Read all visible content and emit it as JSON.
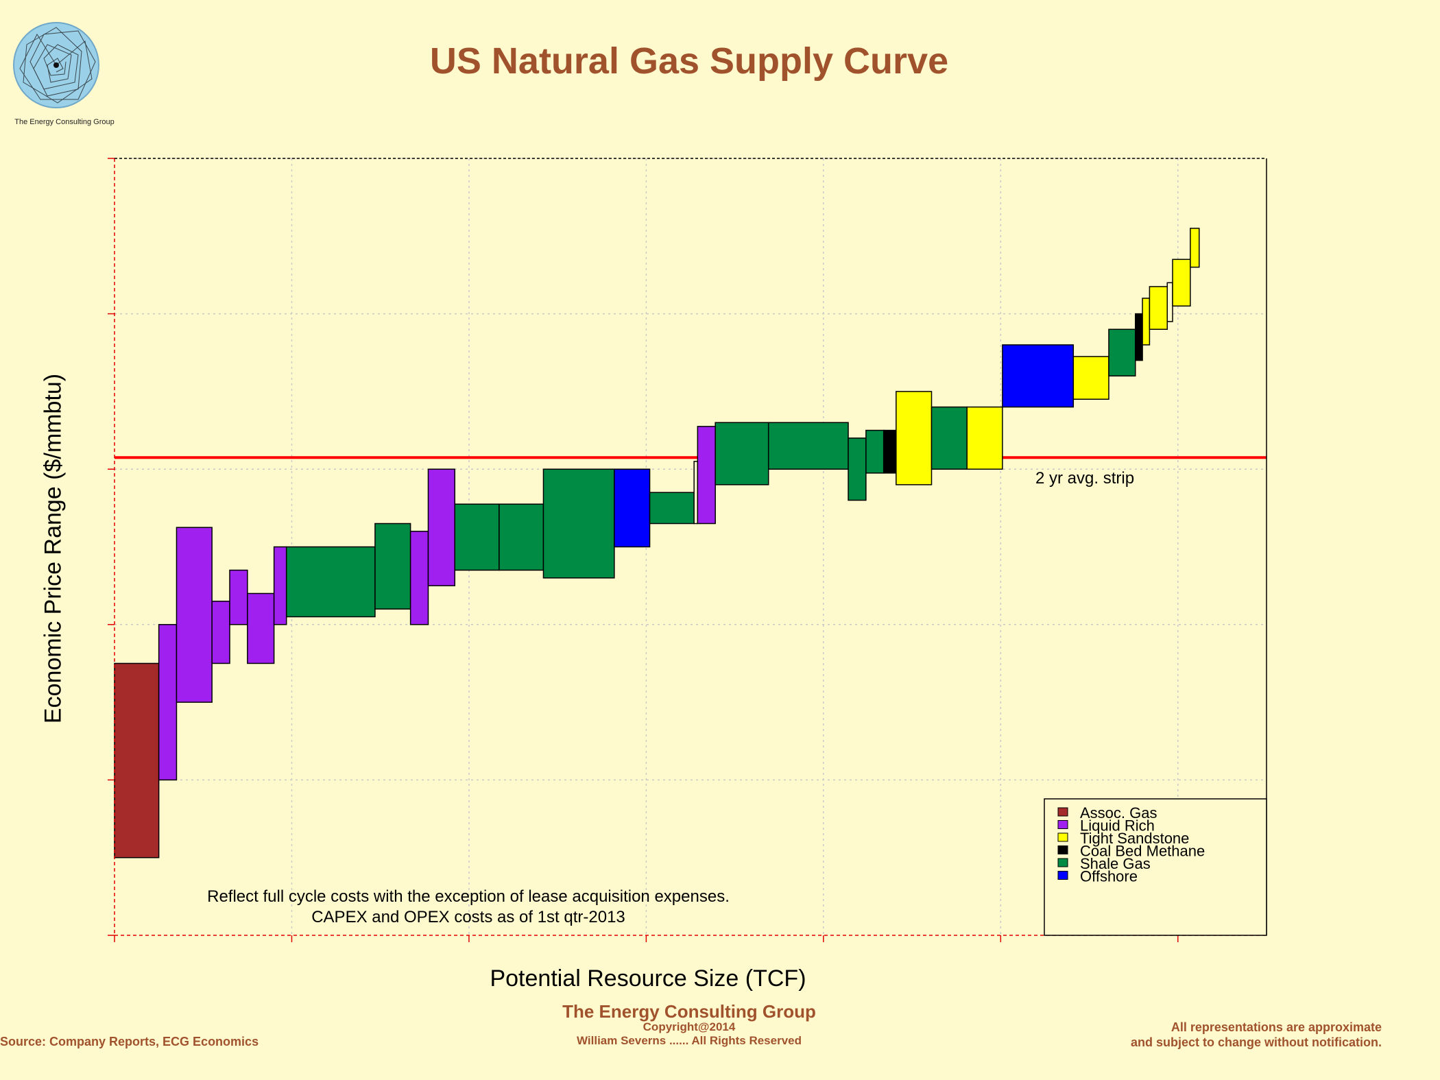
{
  "logo": {
    "caption": "The Energy Consulting Group"
  },
  "title": "US Natural Gas Supply Curve",
  "footer": {
    "company": "The Energy Consulting Group",
    "copyright": "Copyright@2014",
    "rights": "William Severns ...... All Rights Reserved",
    "source": "Source: Company Reports, ECG Economics",
    "disclaimer_1": "All representations are approximate",
    "disclaimer_2": "and subject to change without notification."
  },
  "chart_data": {
    "type": "bar",
    "subtype": "variable-width supply curve (boxes: width = resource size, vertical span = price range)",
    "xlabel": "Potential Resource Size (TCF)",
    "ylabel": "Economic Price Range ($/mmbtu)",
    "xlim": [
      0,
      65
    ],
    "ylim": [
      0,
      10
    ],
    "x_tick_count": 7,
    "y_tick_count": 6,
    "x_ticks_labeled": false,
    "y_ticks_labeled": false,
    "grid": true,
    "legend_position": "bottom-right",
    "colors": {
      "Assoc. Gas": "#A52A2A",
      "Liquid Rich": "#A020F0",
      "Tight Sandstone": "#FFFF00",
      "Coal Bed Methane": "#000000",
      "Shale Gas": "#008B45",
      "Offshore": "#0000FF",
      "Unassigned": "#FFFACD"
    },
    "legend": [
      "Assoc. Gas",
      "Liquid Rich",
      "Tight Sandstone",
      "Coal Bed Methane",
      "Shale Gas",
      "Offshore"
    ],
    "reference_line": {
      "y": 6.15,
      "label": "2 yr avg. strip",
      "color": "#FF0000"
    },
    "annotation": [
      "Reflect full cycle costs with the exception of lease acquisition expenses.",
      "CAPEX and OPEX costs as of 1st qtr-2013"
    ],
    "boxes": [
      {
        "category": "Assoc. Gas",
        "x0": 0.0,
        "x1": 2.5,
        "low": 1.0,
        "high": 3.5
      },
      {
        "category": "Liquid Rich",
        "x0": 2.5,
        "x1": 3.5,
        "low": 2.0,
        "high": 4.0
      },
      {
        "category": "Liquid Rich",
        "x0": 3.5,
        "x1": 5.5,
        "low": 3.0,
        "high": 5.25
      },
      {
        "category": "Liquid Rich",
        "x0": 5.5,
        "x1": 6.5,
        "low": 3.5,
        "high": 4.3
      },
      {
        "category": "Liquid Rich",
        "x0": 6.5,
        "x1": 7.5,
        "low": 4.0,
        "high": 4.7
      },
      {
        "category": "Liquid Rich",
        "x0": 7.5,
        "x1": 9.0,
        "low": 3.5,
        "high": 4.4
      },
      {
        "category": "Liquid Rich",
        "x0": 9.0,
        "x1": 9.7,
        "low": 4.0,
        "high": 5.0
      },
      {
        "category": "Shale Gas",
        "x0": 9.7,
        "x1": 14.7,
        "low": 4.1,
        "high": 5.0
      },
      {
        "category": "Shale Gas",
        "x0": 14.7,
        "x1": 16.7,
        "low": 4.2,
        "high": 5.3
      },
      {
        "category": "Liquid Rich",
        "x0": 16.7,
        "x1": 17.7,
        "low": 4.0,
        "high": 5.2
      },
      {
        "category": "Liquid Rich",
        "x0": 17.7,
        "x1": 19.2,
        "low": 4.5,
        "high": 6.0
      },
      {
        "category": "Shale Gas",
        "x0": 19.2,
        "x1": 21.7,
        "low": 4.7,
        "high": 5.55
      },
      {
        "category": "Shale Gas",
        "x0": 21.7,
        "x1": 24.2,
        "low": 4.7,
        "high": 5.55
      },
      {
        "category": "Shale Gas",
        "x0": 24.2,
        "x1": 28.2,
        "low": 4.6,
        "high": 6.0
      },
      {
        "category": "Offshore",
        "x0": 28.2,
        "x1": 30.2,
        "low": 5.0,
        "high": 6.0
      },
      {
        "category": "Shale Gas",
        "x0": 30.2,
        "x1": 32.7,
        "low": 5.3,
        "high": 5.7
      },
      {
        "category": "Unassigned",
        "x0": 32.7,
        "x1": 32.9,
        "low": 5.3,
        "high": 6.1
      },
      {
        "category": "Liquid Rich",
        "x0": 32.9,
        "x1": 33.9,
        "low": 5.3,
        "high": 6.55
      },
      {
        "category": "Shale Gas",
        "x0": 33.9,
        "x1": 36.9,
        "low": 5.8,
        "high": 6.6
      },
      {
        "category": "Shale Gas",
        "x0": 36.9,
        "x1": 41.4,
        "low": 6.0,
        "high": 6.6
      },
      {
        "category": "Shale Gas",
        "x0": 41.4,
        "x1": 42.4,
        "low": 5.6,
        "high": 6.4
      },
      {
        "category": "Shale Gas",
        "x0": 42.4,
        "x1": 43.4,
        "low": 5.95,
        "high": 6.5
      },
      {
        "category": "Coal Bed Methane",
        "x0": 43.4,
        "x1": 44.1,
        "low": 5.95,
        "high": 6.5
      },
      {
        "category": "Tight Sandstone",
        "x0": 44.1,
        "x1": 46.1,
        "low": 5.8,
        "high": 7.0
      },
      {
        "category": "Shale Gas",
        "x0": 46.1,
        "x1": 48.1,
        "low": 6.0,
        "high": 6.8
      },
      {
        "category": "Tight Sandstone",
        "x0": 48.1,
        "x1": 50.1,
        "low": 6.0,
        "high": 6.8
      },
      {
        "category": "Offshore",
        "x0": 50.1,
        "x1": 54.1,
        "low": 6.8,
        "high": 7.6
      },
      {
        "category": "Tight Sandstone",
        "x0": 54.1,
        "x1": 56.1,
        "low": 6.9,
        "high": 7.45
      },
      {
        "category": "Shale Gas",
        "x0": 56.1,
        "x1": 57.6,
        "low": 7.2,
        "high": 7.8
      },
      {
        "category": "Coal Bed Methane",
        "x0": 57.6,
        "x1": 58.0,
        "low": 7.4,
        "high": 8.0
      },
      {
        "category": "Tight Sandstone",
        "x0": 58.0,
        "x1": 58.4,
        "low": 7.6,
        "high": 8.2
      },
      {
        "category": "Tight Sandstone",
        "x0": 58.4,
        "x1": 59.4,
        "low": 7.8,
        "high": 8.35
      },
      {
        "category": "Unassigned",
        "x0": 59.4,
        "x1": 59.7,
        "low": 7.9,
        "high": 8.4
      },
      {
        "category": "Tight Sandstone",
        "x0": 59.7,
        "x1": 60.7,
        "low": 8.1,
        "high": 8.7
      },
      {
        "category": "Tight Sandstone",
        "x0": 60.7,
        "x1": 61.2,
        "low": 8.6,
        "high": 9.1
      }
    ]
  }
}
